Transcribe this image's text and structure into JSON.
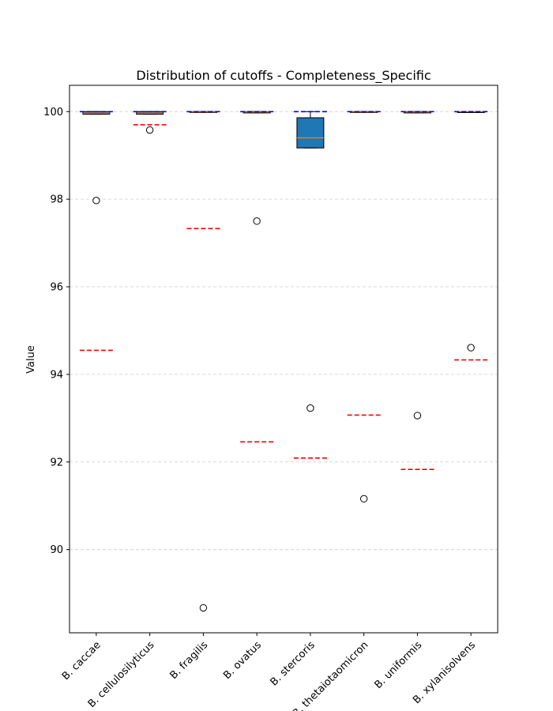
{
  "chart_data": {
    "type": "box",
    "title": "Distribution of cutoffs - Completeness_Specific",
    "xlabel": "",
    "ylabel": "Value",
    "ylim": [
      88.1,
      100.6
    ],
    "yticks": [
      90,
      92,
      94,
      96,
      98,
      100
    ],
    "grid": "y-dashed",
    "categories": [
      "B. caccae",
      "B. cellulosilyticus",
      "B. fragilis",
      "B. ovatus",
      "B. stercoris",
      "B. thetaiotaomicron",
      "B. uniformis",
      "B. xylanisolvens"
    ],
    "boxes": [
      {
        "q1": 99.94,
        "median": 99.97,
        "q3": 100.0,
        "whisker_low": 99.94,
        "whisker_high": 100.0,
        "outliers": [
          97.97
        ]
      },
      {
        "q1": 99.94,
        "median": 99.97,
        "q3": 100.0,
        "whisker_low": 99.94,
        "whisker_high": 100.0,
        "outliers": [
          99.58
        ]
      },
      {
        "q1": 99.98,
        "median": 99.99,
        "q3": 100.0,
        "whisker_low": 99.98,
        "whisker_high": 100.0,
        "outliers": [
          88.67
        ]
      },
      {
        "q1": 99.97,
        "median": 99.99,
        "q3": 100.0,
        "whisker_low": 99.97,
        "whisker_high": 100.0,
        "outliers": [
          97.5
        ]
      },
      {
        "q1": 99.17,
        "median": 99.4,
        "q3": 99.86,
        "whisker_low": 99.17,
        "whisker_high": 100.0,
        "outliers": [
          93.23
        ]
      },
      {
        "q1": 99.98,
        "median": 99.99,
        "q3": 100.0,
        "whisker_low": 99.98,
        "whisker_high": 100.0,
        "outliers": [
          91.16
        ]
      },
      {
        "q1": 99.97,
        "median": 99.99,
        "q3": 100.0,
        "whisker_low": 99.97,
        "whisker_high": 100.0,
        "outliers": [
          93.06
        ]
      },
      {
        "q1": 99.99,
        "median": 100.0,
        "q3": 100.0,
        "whisker_low": 99.99,
        "whisker_high": 100.0,
        "outliers": [
          94.61
        ]
      }
    ],
    "red_dashed_lines": [
      94.55,
      99.7,
      97.33,
      92.46,
      92.09,
      93.07,
      91.83,
      94.33
    ],
    "blue_dashed_lines": [
      100.0,
      100.0,
      100.0,
      100.0,
      100.0,
      100.0,
      100.0,
      100.0
    ],
    "colors": {
      "box_fill": "#1f77b4",
      "median": "#ff7f0e",
      "red_line": "#ff0000",
      "blue_line": "#0000ff",
      "grid": "#cccccc"
    }
  }
}
